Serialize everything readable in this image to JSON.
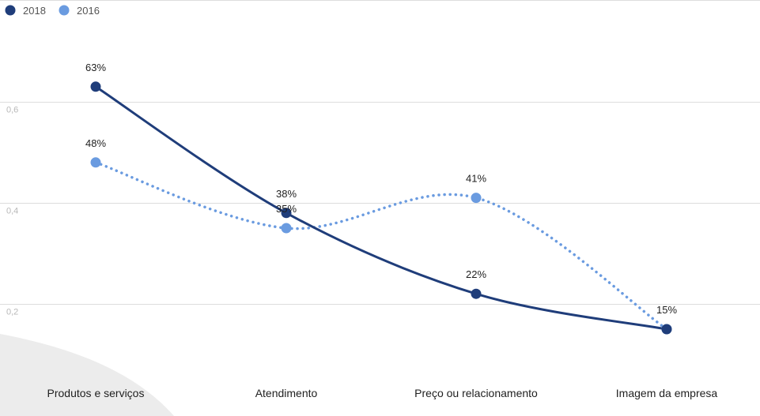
{
  "chart_data": {
    "type": "line",
    "categories": [
      "Produtos e serviços",
      "Atendimento",
      "Preço ou relacionamento",
      "Imagem da empresa"
    ],
    "series": [
      {
        "name": "2018",
        "values": [
          0.63,
          0.38,
          0.22,
          0.15
        ],
        "labels": [
          "63%",
          "38%",
          "22%",
          "15%"
        ],
        "color": "#1f3d7a",
        "style": "solid"
      },
      {
        "name": "2016",
        "values": [
          0.48,
          0.35,
          0.41,
          0.15
        ],
        "labels": [
          "48%",
          "35%",
          "41%",
          "15%"
        ],
        "color": "#6a9be0",
        "style": "dotted"
      }
    ],
    "y_ticks": [
      0.2,
      0.4,
      0.6
    ],
    "y_tick_labels": [
      "0,2",
      "0,4",
      "0,6"
    ],
    "ylim": [
      0.1,
      0.8
    ],
    "grid": true,
    "legend_position": "top-left",
    "title": "",
    "xlabel": "",
    "ylabel": ""
  },
  "colors": {
    "gridline": "#dddddd",
    "background_shape": "#ececec"
  }
}
